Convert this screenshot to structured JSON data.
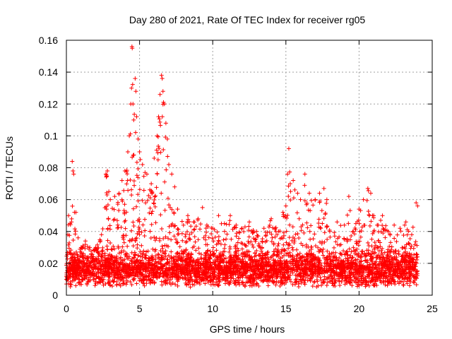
{
  "chart_data": {
    "type": "scatter",
    "title": "Day 280 of 2021, Rate Of TEC Index for receiver rg05",
    "xlabel": "GPS time / hours",
    "ylabel": "ROTI / TECUs",
    "xlim": [
      0,
      25
    ],
    "ylim": [
      0,
      0.16
    ],
    "x_ticks": [
      0,
      5,
      10,
      15,
      20,
      25
    ],
    "y_ticks": [
      0,
      0.02,
      0.04,
      0.06,
      0.08,
      0.1,
      0.12,
      0.14,
      0.16
    ],
    "x_tick_labels": [
      "0",
      "5",
      "10",
      "15",
      "20",
      "25"
    ],
    "y_tick_labels": [
      "0",
      "0.02",
      "0.04",
      "0.06",
      "0.08",
      "0.1",
      "0.12",
      "0.14",
      "0.16"
    ],
    "grid": true,
    "marker": "plus",
    "marker_color": "#ff0000",
    "series": [
      {
        "points": [
          [
            0.0,
            0.01
          ],
          [
            0.1,
            0.038
          ],
          [
            0.15,
            0.05
          ],
          [
            0.25,
            0.045
          ],
          [
            0.35,
            0.046
          ],
          [
            0.4,
            0.084
          ],
          [
            0.45,
            0.078
          ],
          [
            0.5,
            0.076
          ],
          [
            0.55,
            0.052
          ],
          [
            0.65,
            0.052
          ],
          [
            0.8,
            0.036
          ],
          [
            1.0,
            0.03
          ],
          [
            1.3,
            0.034
          ],
          [
            1.6,
            0.03
          ],
          [
            2.0,
            0.03
          ],
          [
            2.4,
            0.038
          ],
          [
            2.7,
            0.076
          ],
          [
            2.8,
            0.078
          ],
          [
            3.0,
            0.06
          ],
          [
            3.3,
            0.062
          ],
          [
            3.6,
            0.064
          ],
          [
            3.8,
            0.072
          ],
          [
            4.0,
            0.078
          ],
          [
            4.2,
            0.09
          ],
          [
            4.3,
            0.1
          ],
          [
            4.4,
            0.12
          ],
          [
            4.45,
            0.13
          ],
          [
            4.48,
            0.156
          ],
          [
            4.5,
            0.155
          ],
          [
            4.55,
            0.12
          ],
          [
            4.6,
            0.11
          ],
          [
            4.7,
            0.136
          ],
          [
            4.75,
            0.128
          ],
          [
            4.8,
            0.112
          ],
          [
            4.9,
            0.098
          ],
          [
            5.0,
            0.09
          ],
          [
            5.2,
            0.082
          ],
          [
            5.5,
            0.076
          ],
          [
            5.8,
            0.07
          ],
          [
            6.0,
            0.086
          ],
          [
            6.2,
            0.1
          ],
          [
            6.3,
            0.112
          ],
          [
            6.4,
            0.126
          ],
          [
            6.5,
            0.138
          ],
          [
            6.55,
            0.136
          ],
          [
            6.6,
            0.128
          ],
          [
            6.7,
            0.12
          ],
          [
            6.8,
            0.108
          ],
          [
            6.9,
            0.098
          ],
          [
            7.0,
            0.082
          ],
          [
            7.2,
            0.076
          ],
          [
            7.4,
            0.068
          ],
          [
            7.6,
            0.054
          ],
          [
            8.0,
            0.044
          ],
          [
            8.3,
            0.05
          ],
          [
            8.7,
            0.046
          ],
          [
            9.0,
            0.048
          ],
          [
            9.3,
            0.055
          ],
          [
            9.6,
            0.044
          ],
          [
            10.0,
            0.042
          ],
          [
            10.4,
            0.05
          ],
          [
            10.8,
            0.045
          ],
          [
            11.2,
            0.05
          ],
          [
            11.6,
            0.044
          ],
          [
            12.0,
            0.042
          ],
          [
            12.5,
            0.046
          ],
          [
            13.0,
            0.04
          ],
          [
            13.5,
            0.042
          ],
          [
            14.0,
            0.048
          ],
          [
            14.5,
            0.04
          ],
          [
            14.8,
            0.052
          ],
          [
            15.0,
            0.056
          ],
          [
            15.2,
            0.092
          ],
          [
            15.3,
            0.07
          ],
          [
            15.5,
            0.072
          ],
          [
            15.8,
            0.064
          ],
          [
            16.0,
            0.06
          ],
          [
            16.3,
            0.076
          ],
          [
            16.6,
            0.064
          ],
          [
            17.0,
            0.06
          ],
          [
            17.3,
            0.064
          ],
          [
            17.6,
            0.067
          ],
          [
            17.8,
            0.06
          ],
          [
            18.0,
            0.04
          ],
          [
            18.5,
            0.046
          ],
          [
            19.0,
            0.044
          ],
          [
            19.3,
            0.062
          ],
          [
            19.6,
            0.04
          ],
          [
            20.0,
            0.054
          ],
          [
            20.3,
            0.06
          ],
          [
            20.6,
            0.067
          ],
          [
            20.8,
            0.064
          ],
          [
            21.0,
            0.05
          ],
          [
            21.3,
            0.044
          ],
          [
            21.6,
            0.05
          ],
          [
            22.0,
            0.04
          ],
          [
            22.4,
            0.044
          ],
          [
            22.8,
            0.042
          ],
          [
            23.2,
            0.046
          ],
          [
            23.6,
            0.038
          ],
          [
            23.9,
            0.058
          ],
          [
            24.0,
            0.056
          ]
        ]
      }
    ]
  }
}
